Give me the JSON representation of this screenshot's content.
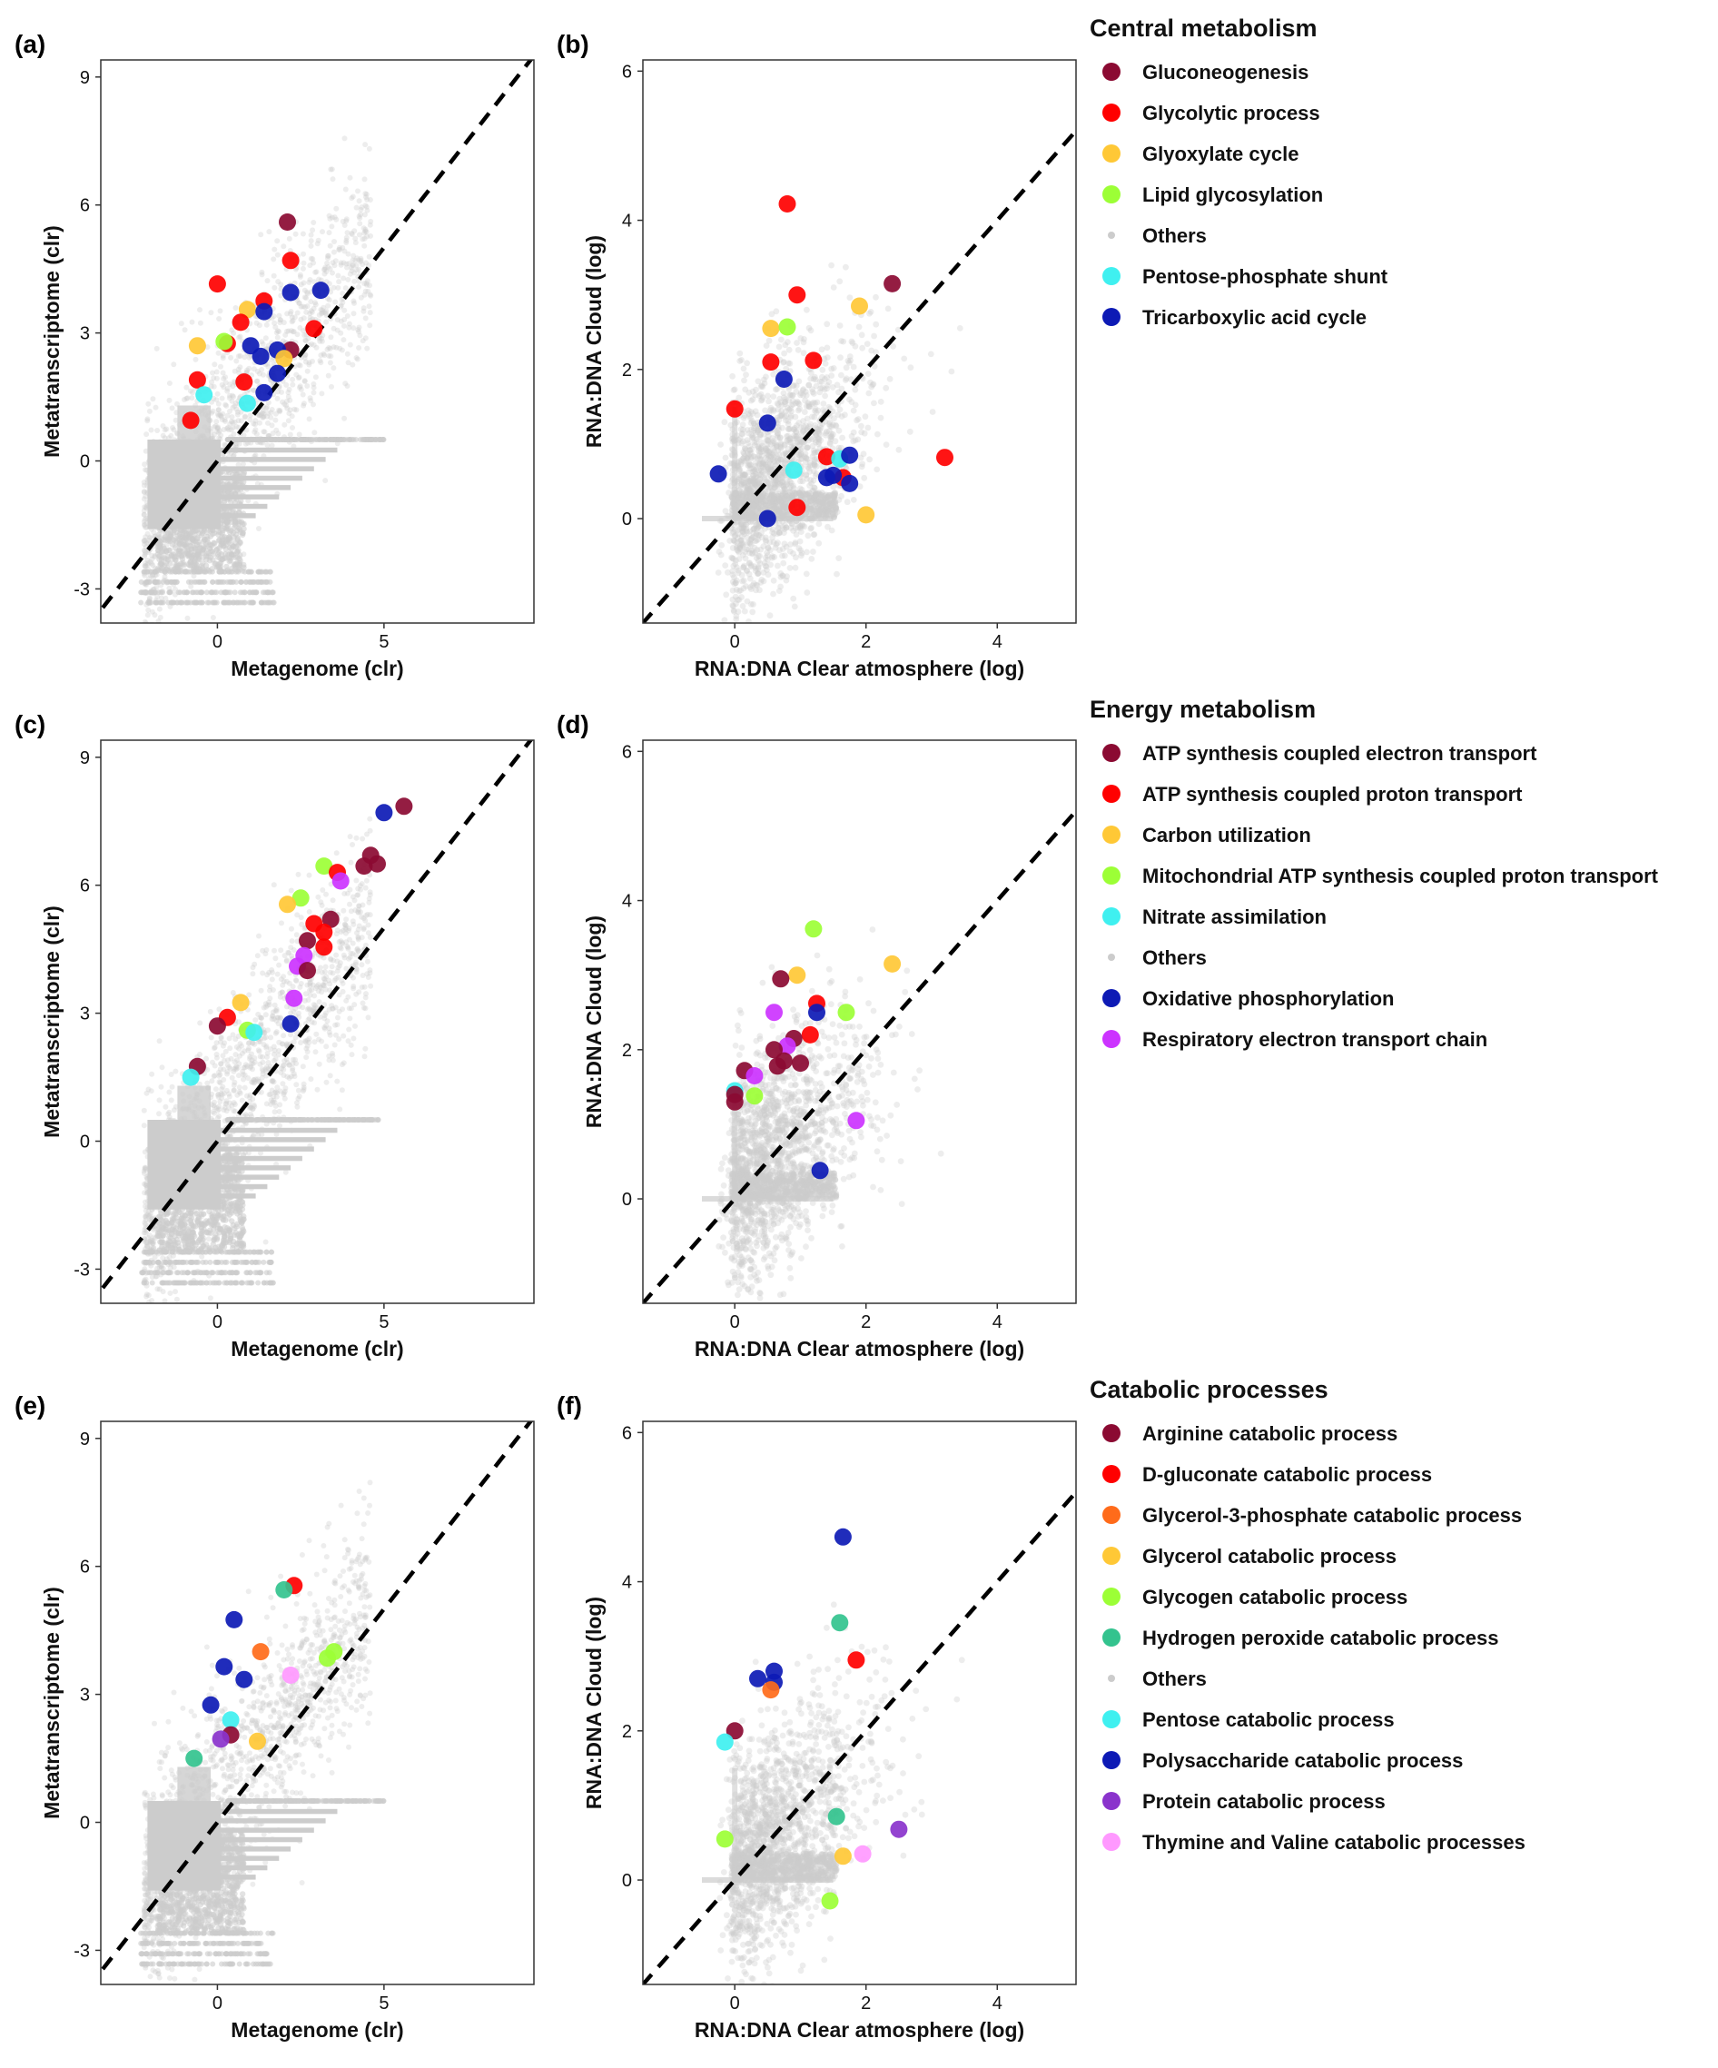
{
  "chart_data": [
    {
      "id": "a",
      "panel_label": "(a)",
      "type": "scatter",
      "xlabel": "Metagenome (clr)",
      "ylabel": "Metatranscriptome (clr)",
      "xlim": [
        -3.5,
        9.5
      ],
      "ylim": [
        -3.8,
        9.4
      ],
      "xticks": [
        0,
        5
      ],
      "yticks": [
        -3,
        0,
        3,
        6,
        9
      ],
      "reference_line": "y = x (dashed)",
      "background_color": "#cccccc",
      "background_series": "Others",
      "background_layout": "clr",
      "points": [
        {
          "x": 2.1,
          "y": 5.6,
          "c": "#8b0a32"
        },
        {
          "x": 2.2,
          "y": 4.7,
          "c": "#ff0000"
        },
        {
          "x": 0.0,
          "y": 4.15,
          "c": "#ff0000"
        },
        {
          "x": 2.2,
          "y": 3.95,
          "c": "#0d1ab5"
        },
        {
          "x": 3.1,
          "y": 4.0,
          "c": "#0d1ab5"
        },
        {
          "x": 1.4,
          "y": 3.75,
          "c": "#ff0000"
        },
        {
          "x": 0.9,
          "y": 3.55,
          "c": "#ffc836"
        },
        {
          "x": 1.4,
          "y": 3.5,
          "c": "#0d1ab5"
        },
        {
          "x": 0.7,
          "y": 3.25,
          "c": "#ff0000"
        },
        {
          "x": 2.9,
          "y": 3.1,
          "c": "#ff0000"
        },
        {
          "x": 0.3,
          "y": 2.75,
          "c": "#ff0000"
        },
        {
          "x": 0.2,
          "y": 2.8,
          "c": "#9cff36"
        },
        {
          "x": -0.6,
          "y": 2.7,
          "c": "#ffc836"
        },
        {
          "x": 1.0,
          "y": 2.7,
          "c": "#0d1ab5"
        },
        {
          "x": 2.2,
          "y": 2.6,
          "c": "#8b0a32"
        },
        {
          "x": 1.8,
          "y": 2.6,
          "c": "#0d1ab5"
        },
        {
          "x": 1.3,
          "y": 2.45,
          "c": "#0d1ab5"
        },
        {
          "x": 2.0,
          "y": 2.4,
          "c": "#ffc836"
        },
        {
          "x": 1.8,
          "y": 2.05,
          "c": "#0d1ab5"
        },
        {
          "x": -0.6,
          "y": 1.9,
          "c": "#ff0000"
        },
        {
          "x": 0.8,
          "y": 1.85,
          "c": "#ff0000"
        },
        {
          "x": -0.4,
          "y": 1.55,
          "c": "#3ff0f0"
        },
        {
          "x": 1.4,
          "y": 1.6,
          "c": "#0d1ab5"
        },
        {
          "x": 0.9,
          "y": 1.35,
          "c": "#3ff0f0"
        },
        {
          "x": -0.8,
          "y": 0.95,
          "c": "#ff0000"
        }
      ]
    },
    {
      "id": "b",
      "panel_label": "(b)",
      "type": "scatter",
      "xlabel": "RNA:DNA Clear atmosphere (log)",
      "ylabel": "RNA:DNA Cloud (log)",
      "xlim": [
        -1.4,
        5.2
      ],
      "ylim": [
        -1.4,
        6.15
      ],
      "xticks": [
        0,
        2,
        4
      ],
      "yticks": [
        0,
        2,
        4,
        6
      ],
      "reference_line": "y = x (dashed)",
      "background_color": "#cccccc",
      "background_series": "Others",
      "background_layout": "ratio",
      "points": [
        {
          "x": 0.8,
          "y": 4.22,
          "c": "#ff0000"
        },
        {
          "x": 2.4,
          "y": 3.15,
          "c": "#8b0a32"
        },
        {
          "x": 0.95,
          "y": 3.0,
          "c": "#ff0000"
        },
        {
          "x": 1.9,
          "y": 2.85,
          "c": "#ffc836"
        },
        {
          "x": 0.55,
          "y": 2.55,
          "c": "#ffc836"
        },
        {
          "x": 0.8,
          "y": 2.57,
          "c": "#9cff36"
        },
        {
          "x": 1.2,
          "y": 2.12,
          "c": "#ff0000"
        },
        {
          "x": 0.55,
          "y": 2.1,
          "c": "#ff0000"
        },
        {
          "x": 0.75,
          "y": 1.87,
          "c": "#0d1ab5"
        },
        {
          "x": 0.0,
          "y": 1.47,
          "c": "#ff0000"
        },
        {
          "x": 0.5,
          "y": 1.28,
          "c": "#0d1ab5"
        },
        {
          "x": 1.4,
          "y": 0.83,
          "c": "#ff0000"
        },
        {
          "x": 1.6,
          "y": 0.8,
          "c": "#3ff0f0"
        },
        {
          "x": 1.75,
          "y": 0.85,
          "c": "#0d1ab5"
        },
        {
          "x": 3.2,
          "y": 0.82,
          "c": "#ff0000"
        },
        {
          "x": 0.9,
          "y": 0.65,
          "c": "#3ff0f0"
        },
        {
          "x": 1.65,
          "y": 0.55,
          "c": "#ff0000"
        },
        {
          "x": 1.4,
          "y": 0.55,
          "c": "#0d1ab5"
        },
        {
          "x": 1.5,
          "y": 0.58,
          "c": "#0d1ab5"
        },
        {
          "x": 1.75,
          "y": 0.47,
          "c": "#0d1ab5"
        },
        {
          "x": -0.25,
          "y": 0.6,
          "c": "#0d1ab5"
        },
        {
          "x": 0.95,
          "y": 0.15,
          "c": "#ff0000"
        },
        {
          "x": 2.0,
          "y": 0.05,
          "c": "#ffc836"
        },
        {
          "x": 0.5,
          "y": 0.0,
          "c": "#0d1ab5"
        }
      ]
    },
    {
      "id": "c",
      "panel_label": "(c)",
      "type": "scatter",
      "xlabel": "Metagenome (clr)",
      "ylabel": "Metatranscriptome (clr)",
      "xlim": [
        -3.5,
        9.5
      ],
      "ylim": [
        -3.8,
        9.4
      ],
      "xticks": [
        0,
        5
      ],
      "yticks": [
        -3,
        0,
        3,
        6,
        9
      ],
      "reference_line": "y = x (dashed)",
      "background_color": "#cccccc",
      "background_series": "Others",
      "background_layout": "clr",
      "points": [
        {
          "x": 5.6,
          "y": 7.85,
          "c": "#8b0a32"
        },
        {
          "x": 5.0,
          "y": 7.7,
          "c": "#0d1ab5"
        },
        {
          "x": 4.6,
          "y": 6.7,
          "c": "#8b0a32"
        },
        {
          "x": 4.8,
          "y": 6.5,
          "c": "#8b0a32"
        },
        {
          "x": 4.4,
          "y": 6.45,
          "c": "#8b0a32"
        },
        {
          "x": 3.2,
          "y": 6.45,
          "c": "#9cff36"
        },
        {
          "x": 3.6,
          "y": 6.3,
          "c": "#ff0000"
        },
        {
          "x": 3.7,
          "y": 6.1,
          "c": "#cc33ff"
        },
        {
          "x": 2.5,
          "y": 5.7,
          "c": "#9cff36"
        },
        {
          "x": 2.1,
          "y": 5.55,
          "c": "#ffc836"
        },
        {
          "x": 3.4,
          "y": 5.2,
          "c": "#8b0a32"
        },
        {
          "x": 2.9,
          "y": 5.1,
          "c": "#ff0000"
        },
        {
          "x": 3.2,
          "y": 4.9,
          "c": "#ff0000"
        },
        {
          "x": 2.7,
          "y": 4.7,
          "c": "#8b0a32"
        },
        {
          "x": 3.2,
          "y": 4.55,
          "c": "#ff0000"
        },
        {
          "x": 2.6,
          "y": 4.35,
          "c": "#cc33ff"
        },
        {
          "x": 2.4,
          "y": 4.1,
          "c": "#cc33ff"
        },
        {
          "x": 2.7,
          "y": 4.0,
          "c": "#8b0a32"
        },
        {
          "x": 2.3,
          "y": 3.35,
          "c": "#cc33ff"
        },
        {
          "x": 0.7,
          "y": 3.25,
          "c": "#ffc836"
        },
        {
          "x": 0.3,
          "y": 2.9,
          "c": "#ff0000"
        },
        {
          "x": 0.0,
          "y": 2.7,
          "c": "#8b0a32"
        },
        {
          "x": 2.2,
          "y": 2.75,
          "c": "#0d1ab5"
        },
        {
          "x": 0.9,
          "y": 2.6,
          "c": "#9cff36"
        },
        {
          "x": 1.1,
          "y": 2.55,
          "c": "#3ff0f0"
        },
        {
          "x": -0.6,
          "y": 1.75,
          "c": "#8b0a32"
        },
        {
          "x": -0.8,
          "y": 1.5,
          "c": "#3ff0f0"
        }
      ]
    },
    {
      "id": "d",
      "panel_label": "(d)",
      "type": "scatter",
      "xlabel": "RNA:DNA Clear atmosphere (log)",
      "ylabel": "RNA:DNA Cloud (log)",
      "xlim": [
        -1.4,
        5.2
      ],
      "ylim": [
        -1.4,
        6.15
      ],
      "xticks": [
        0,
        2,
        4
      ],
      "yticks": [
        0,
        2,
        4,
        6
      ],
      "reference_line": "y = x (dashed)",
      "background_color": "#cccccc",
      "background_series": "Others",
      "background_layout": "ratio",
      "points": [
        {
          "x": 1.2,
          "y": 3.62,
          "c": "#9cff36"
        },
        {
          "x": 2.4,
          "y": 3.15,
          "c": "#ffc836"
        },
        {
          "x": 0.95,
          "y": 3.0,
          "c": "#ffc836"
        },
        {
          "x": 0.7,
          "y": 2.95,
          "c": "#8b0a32"
        },
        {
          "x": 1.25,
          "y": 2.62,
          "c": "#ff0000"
        },
        {
          "x": 1.25,
          "y": 2.5,
          "c": "#0d1ab5"
        },
        {
          "x": 0.6,
          "y": 2.5,
          "c": "#cc33ff"
        },
        {
          "x": 1.7,
          "y": 2.5,
          "c": "#9cff36"
        },
        {
          "x": 1.15,
          "y": 2.2,
          "c": "#ff0000"
        },
        {
          "x": 0.9,
          "y": 2.15,
          "c": "#8b0a32"
        },
        {
          "x": 0.8,
          "y": 2.05,
          "c": "#cc33ff"
        },
        {
          "x": 0.6,
          "y": 2.0,
          "c": "#8b0a32"
        },
        {
          "x": 0.75,
          "y": 1.85,
          "c": "#8b0a32"
        },
        {
          "x": 1.0,
          "y": 1.82,
          "c": "#8b0a32"
        },
        {
          "x": 0.65,
          "y": 1.78,
          "c": "#8b0a32"
        },
        {
          "x": 0.15,
          "y": 1.72,
          "c": "#8b0a32"
        },
        {
          "x": 0.3,
          "y": 1.65,
          "c": "#cc33ff"
        },
        {
          "x": 0.0,
          "y": 1.45,
          "c": "#3ff0f0"
        },
        {
          "x": 0.0,
          "y": 1.4,
          "c": "#8b0a32"
        },
        {
          "x": 0.3,
          "y": 1.38,
          "c": "#9cff36"
        },
        {
          "x": 0.0,
          "y": 1.3,
          "c": "#8b0a32"
        },
        {
          "x": 1.85,
          "y": 1.05,
          "c": "#cc33ff"
        },
        {
          "x": 1.3,
          "y": 0.38,
          "c": "#0d1ab5"
        }
      ]
    },
    {
      "id": "e",
      "panel_label": "(e)",
      "type": "scatter",
      "xlabel": "Metagenome (clr)",
      "ylabel": "Metatranscriptome (clr)",
      "xlim": [
        -3.5,
        9.5
      ],
      "ylim": [
        -3.8,
        9.4
      ],
      "xticks": [
        0,
        5
      ],
      "yticks": [
        -3,
        0,
        3,
        6,
        9
      ],
      "reference_line": "y = x (dashed)",
      "background_color": "#cccccc",
      "background_series": "Others",
      "background_layout": "clr",
      "points": [
        {
          "x": 2.3,
          "y": 5.55,
          "c": "#ff0000"
        },
        {
          "x": 2.0,
          "y": 5.45,
          "c": "#33c38e"
        },
        {
          "x": 0.5,
          "y": 4.75,
          "c": "#0d1ab5"
        },
        {
          "x": 1.3,
          "y": 4.0,
          "c": "#ff6b1a"
        },
        {
          "x": 3.5,
          "y": 4.0,
          "c": "#9cff36"
        },
        {
          "x": 3.3,
          "y": 3.85,
          "c": "#9cff36"
        },
        {
          "x": 0.2,
          "y": 3.65,
          "c": "#0d1ab5"
        },
        {
          "x": 2.2,
          "y": 3.45,
          "c": "#ff99ff"
        },
        {
          "x": 0.8,
          "y": 3.35,
          "c": "#0d1ab5"
        },
        {
          "x": -0.2,
          "y": 2.75,
          "c": "#0d1ab5"
        },
        {
          "x": 0.4,
          "y": 2.4,
          "c": "#3ff0f0"
        },
        {
          "x": 0.4,
          "y": 2.05,
          "c": "#8b0a32"
        },
        {
          "x": 0.1,
          "y": 1.95,
          "c": "#8a33cc"
        },
        {
          "x": 1.2,
          "y": 1.9,
          "c": "#ffc836"
        },
        {
          "x": -0.7,
          "y": 1.5,
          "c": "#33c38e"
        }
      ]
    },
    {
      "id": "f",
      "panel_label": "(f)",
      "type": "scatter",
      "xlabel": "RNA:DNA Clear atmosphere (log)",
      "ylabel": "RNA:DNA Cloud (log)",
      "xlim": [
        -1.4,
        5.2
      ],
      "ylim": [
        -1.4,
        6.15
      ],
      "xticks": [
        0,
        2,
        4
      ],
      "yticks": [
        0,
        2,
        4,
        6
      ],
      "reference_line": "y = x (dashed)",
      "background_color": "#cccccc",
      "background_series": "Others",
      "background_layout": "ratio",
      "points": [
        {
          "x": 1.65,
          "y": 4.6,
          "c": "#0d1ab5"
        },
        {
          "x": 1.6,
          "y": 3.45,
          "c": "#33c38e"
        },
        {
          "x": 1.85,
          "y": 2.95,
          "c": "#ff0000"
        },
        {
          "x": 0.6,
          "y": 2.8,
          "c": "#0d1ab5"
        },
        {
          "x": 0.35,
          "y": 2.7,
          "c": "#0d1ab5"
        },
        {
          "x": 0.6,
          "y": 2.65,
          "c": "#0d1ab5"
        },
        {
          "x": 0.55,
          "y": 2.55,
          "c": "#ff6b1a"
        },
        {
          "x": 0.0,
          "y": 2.0,
          "c": "#8b0a32"
        },
        {
          "x": -0.15,
          "y": 1.85,
          "c": "#3ff0f0"
        },
        {
          "x": 1.55,
          "y": 0.85,
          "c": "#33c38e"
        },
        {
          "x": 2.5,
          "y": 0.68,
          "c": "#8a33cc"
        },
        {
          "x": -0.15,
          "y": 0.55,
          "c": "#9cff36"
        },
        {
          "x": 1.95,
          "y": 0.35,
          "c": "#ff99ff"
        },
        {
          "x": 1.65,
          "y": 0.32,
          "c": "#ffc836"
        },
        {
          "x": 1.45,
          "y": -0.28,
          "c": "#9cff36"
        }
      ]
    }
  ],
  "legends": [
    {
      "title": "Central metabolism",
      "items": [
        {
          "label": "Gluconeogenesis",
          "color": "#8b0a32"
        },
        {
          "label": "Glycolytic process",
          "color": "#ff0000"
        },
        {
          "label": "Glyoxylate cycle",
          "color": "#ffc836"
        },
        {
          "label": "Lipid glycosylation",
          "color": "#9cff36"
        },
        {
          "label": "Others",
          "color": "#cccccc",
          "small": true
        },
        {
          "label": "Pentose-phosphate shunt",
          "color": "#3ff0f0"
        },
        {
          "label": "Tricarboxylic acid cycle",
          "color": "#0d1ab5"
        }
      ]
    },
    {
      "title": "Energy metabolism",
      "items": [
        {
          "label": "ATP synthesis coupled electron transport",
          "color": "#8b0a32"
        },
        {
          "label": "ATP synthesis coupled proton transport",
          "color": "#ff0000"
        },
        {
          "label": "Carbon utilization",
          "color": "#ffc836"
        },
        {
          "label": "Mitochondrial ATP synthesis coupled proton transport",
          "color": "#9cff36"
        },
        {
          "label": "Nitrate assimilation",
          "color": "#3ff0f0"
        },
        {
          "label": "Others",
          "color": "#cccccc",
          "small": true
        },
        {
          "label": "Oxidative phosphorylation",
          "color": "#0d1ab5"
        },
        {
          "label": "Respiratory electron transport chain",
          "color": "#cc33ff"
        }
      ]
    },
    {
      "title": "Catabolic processes",
      "items": [
        {
          "label": "Arginine catabolic process",
          "color": "#8b0a32"
        },
        {
          "label": "D-gluconate catabolic process",
          "color": "#ff0000"
        },
        {
          "label": "Glycerol-3-phosphate catabolic process",
          "color": "#ff6b1a"
        },
        {
          "label": "Glycerol catabolic process",
          "color": "#ffc836"
        },
        {
          "label": "Glycogen catabolic process",
          "color": "#9cff36"
        },
        {
          "label": "Hydrogen peroxide catabolic process",
          "color": "#33c38e"
        },
        {
          "label": "Others",
          "color": "#cccccc",
          "small": true
        },
        {
          "label": "Pentose catabolic process",
          "color": "#3ff0f0"
        },
        {
          "label": "Polysaccharide catabolic process",
          "color": "#0d1ab5"
        },
        {
          "label": "Protein catabolic process",
          "color": "#8a33cc"
        },
        {
          "label": "Thymine and Valine catabolic processes",
          "color": "#ff99ff"
        }
      ]
    }
  ]
}
